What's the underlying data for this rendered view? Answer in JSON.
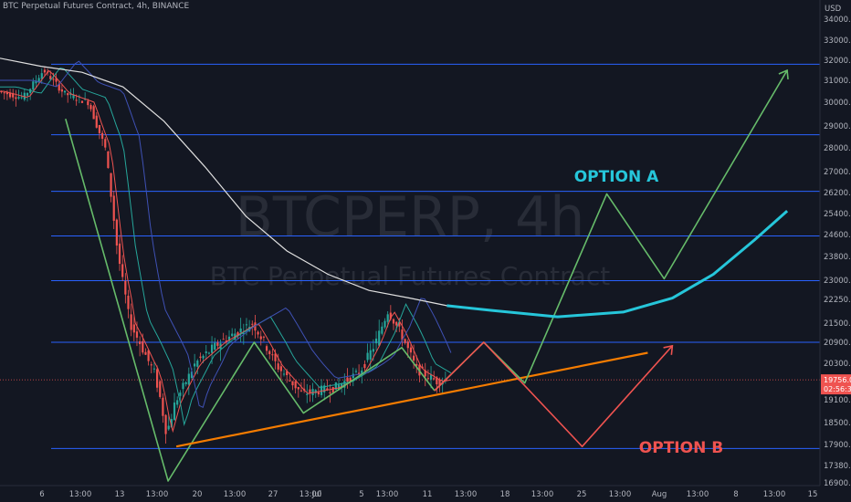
{
  "header": {
    "title": "BTC Perpetual Futures Contract, 4h, BINANCE",
    "currency": "USD"
  },
  "watermark": {
    "symbol": "BTCPERP, 4h",
    "description": "BTC Perpetual Futures Contract"
  },
  "annotations": {
    "option_a": "OPTION A",
    "option_b": "OPTION B"
  },
  "price_label": {
    "value": "19756.0",
    "countdown": "02:56:34"
  },
  "colors": {
    "background": "#131722",
    "up_candle": "#26a69a",
    "down_candle": "#ef5350",
    "level_lines": "#2962ff",
    "pattern": "#66bb6a",
    "trendline": "#f57c00",
    "option_a": "#26c6da",
    "option_b": "#ef5350",
    "ma_200": "#e0e0e0",
    "ma_fast": "#ef5350"
  },
  "chart_data": {
    "type": "line",
    "title": "BTC Perpetual Futures Contract, 4h, BINANCE",
    "y_axis": {
      "ticks": [
        "34000.0",
        "33000.0",
        "32000.0",
        "31000.0",
        "30000.0",
        "29000.0",
        "28000.0",
        "27000.0",
        "26200.0",
        "25400.0",
        "24600.0",
        "23800.0",
        "23000.0",
        "22250.0",
        "21500.0",
        "20900.0",
        "20300.0",
        "19100.0",
        "18500.0",
        "17900.0",
        "17380.0",
        "16900.0"
      ],
      "range": [
        16700,
        34900
      ]
    },
    "x_axis": {
      "ticks": [
        "6",
        "13:00",
        "13",
        "13:00",
        "20",
        "13:00",
        "27",
        "13:00",
        "Jul",
        "5",
        "13:00",
        "11",
        "13:00",
        "18",
        "13:00",
        "25",
        "13:00",
        "Aug",
        "13:00",
        "8",
        "13:00",
        "15"
      ]
    },
    "horizontal_levels": [
      31800,
      28600,
      26250,
      24550,
      22980,
      20900,
      17800
    ],
    "series": [
      {
        "kind": "pattern",
        "points": [
          [
            0.08,
            29300
          ],
          [
            0.205,
            16950
          ],
          [
            0.31,
            20900
          ],
          [
            0.37,
            18750
          ],
          [
            0.49,
            20750
          ],
          [
            0.53,
            19400
          ]
        ]
      },
      {
        "kind": "trendline",
        "points": [
          [
            0.215,
            17850
          ],
          [
            0.79,
            20600
          ]
        ]
      },
      {
        "kind": "option_a_path",
        "points": [
          [
            0.53,
            19400
          ],
          [
            0.59,
            20900
          ],
          [
            0.64,
            19650
          ],
          [
            0.74,
            26150
          ],
          [
            0.81,
            23050
          ],
          [
            0.96,
            31500
          ]
        ]
      },
      {
        "kind": "option_b_path",
        "points": [
          [
            0.53,
            19400
          ],
          [
            0.59,
            20900
          ],
          [
            0.71,
            17850
          ],
          [
            0.82,
            20800
          ]
        ]
      },
      {
        "kind": "projection",
        "points": [
          [
            0.545,
            22050
          ],
          [
            0.6,
            21900
          ],
          [
            0.68,
            21700
          ],
          [
            0.76,
            21850
          ],
          [
            0.82,
            22300
          ],
          [
            0.87,
            23200
          ],
          [
            0.92,
            24400
          ],
          [
            0.96,
            25500
          ]
        ]
      }
    ]
  }
}
